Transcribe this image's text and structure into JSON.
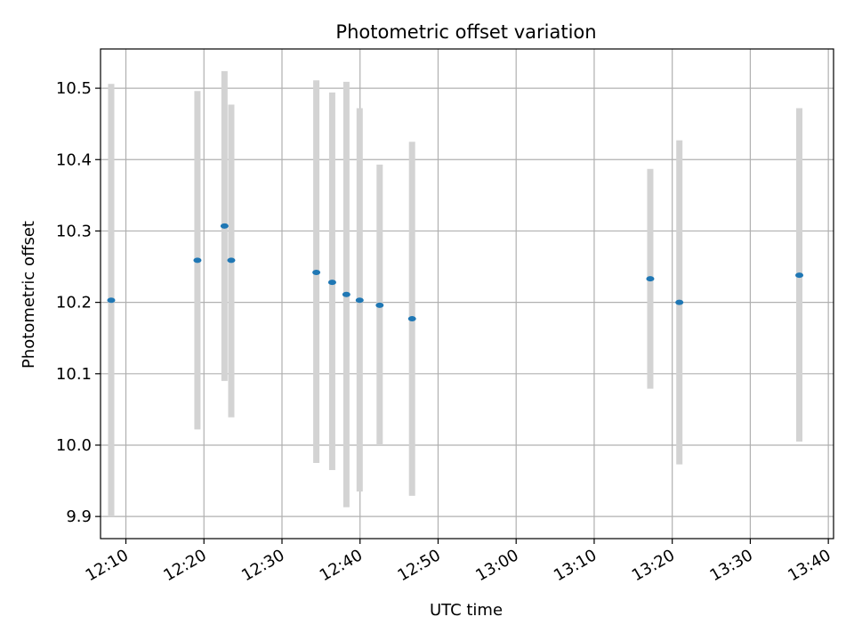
{
  "chart_data": {
    "type": "scatter",
    "title": "Photometric offset variation",
    "xlabel": "UTC time",
    "ylabel": "Photometric offset",
    "x_axis_kind": "time",
    "xlim": [
      "12:06:45",
      "13:40:40"
    ],
    "ylim": [
      9.869,
      10.555
    ],
    "grid": true,
    "x_ticks": [
      "12:10",
      "12:20",
      "12:30",
      "12:40",
      "12:50",
      "13:00",
      "13:10",
      "13:20",
      "13:30",
      "13:40"
    ],
    "y_ticks": [
      9.9,
      10.0,
      10.1,
      10.2,
      10.3,
      10.4,
      10.5
    ],
    "y_tick_labels": [
      "9.9",
      "10.0",
      "10.1",
      "10.2",
      "10.3",
      "10.4",
      "10.5"
    ],
    "marker_color": "#1f77b4",
    "errorbar_color": "#d3d3d3",
    "points": [
      {
        "x": "12:08:07",
        "y": 10.203,
        "ylow": 9.9,
        "yhigh": 10.506
      },
      {
        "x": "12:19:10",
        "y": 10.259,
        "ylow": 10.022,
        "yhigh": 10.496
      },
      {
        "x": "12:22:38",
        "y": 10.307,
        "ylow": 10.09,
        "yhigh": 10.524
      },
      {
        "x": "12:23:30",
        "y": 10.259,
        "ylow": 10.039,
        "yhigh": 10.477
      },
      {
        "x": "12:34:24",
        "y": 10.242,
        "ylow": 9.975,
        "yhigh": 10.511
      },
      {
        "x": "12:36:26",
        "y": 10.228,
        "ylow": 9.965,
        "yhigh": 10.494
      },
      {
        "x": "12:38:15",
        "y": 10.211,
        "ylow": 9.913,
        "yhigh": 10.509
      },
      {
        "x": "12:39:57",
        "y": 10.203,
        "ylow": 9.935,
        "yhigh": 10.472
      },
      {
        "x": "12:42:31",
        "y": 10.196,
        "ylow": 10.0,
        "yhigh": 10.393
      },
      {
        "x": "12:46:40",
        "y": 10.177,
        "ylow": 9.929,
        "yhigh": 10.425
      },
      {
        "x": "13:17:11",
        "y": 10.233,
        "ylow": 10.079,
        "yhigh": 10.387
      },
      {
        "x": "13:20:55",
        "y": 10.2,
        "ylow": 9.973,
        "yhigh": 10.427
      },
      {
        "x": "13:36:17",
        "y": 10.238,
        "ylow": 10.005,
        "yhigh": 10.472
      }
    ]
  }
}
